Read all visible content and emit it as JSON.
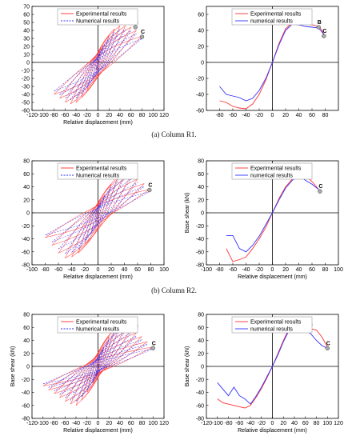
{
  "captions": [
    "(a) Column R1.",
    "(b) Column R2.",
    "(c) Column R3."
  ],
  "chart_data": [
    {
      "type": "line",
      "mode": "hysteresis",
      "panel": "a-left",
      "xlabel": "Relative displacement (mm)",
      "ylabel": "",
      "xlim": [
        -120,
        120
      ],
      "ylim": [
        -60,
        70
      ],
      "xticks": [
        -120,
        -100,
        -80,
        -60,
        -40,
        -20,
        0,
        20,
        40,
        60,
        80,
        100,
        120
      ],
      "yticks": [
        -60,
        -50,
        -40,
        -30,
        -20,
        -10,
        0,
        10,
        20,
        30,
        40,
        50,
        60,
        70
      ],
      "legend": [
        "Experimental results",
        "Numerical results"
      ],
      "colors": {
        "experimental": "#ff3030",
        "numerical": "#3030ff"
      },
      "envelope": {
        "pos_x": [
          4,
          10,
          20,
          30,
          40,
          50,
          60,
          70,
          80
        ],
        "pos_y": [
          12,
          22,
          34,
          42,
          46,
          46,
          44,
          40,
          33
        ],
        "neg_x": [
          -4,
          -10,
          -20,
          -30,
          -40,
          -50,
          -60,
          -70,
          -80
        ],
        "neg_y": [
          -10,
          -20,
          -34,
          -44,
          -50,
          -52,
          -50,
          -45,
          -40
        ]
      },
      "points": [
        {
          "label": "A",
          "x": 32,
          "y": 50
        },
        {
          "label": "B",
          "x": 68,
          "y": 44
        },
        {
          "label": "C",
          "x": 80,
          "y": 32
        }
      ]
    },
    {
      "type": "line",
      "mode": "envelope",
      "panel": "a-right",
      "xlabel": "",
      "ylabel": "",
      "xlim": [
        -100,
        100
      ],
      "ylim": [
        -60,
        70
      ],
      "xticks": [
        -80,
        -60,
        -40,
        -20,
        0,
        20,
        40,
        60,
        80
      ],
      "yticks": [
        -60,
        -40,
        -20,
        0,
        20,
        40,
        60
      ],
      "legend": [
        "Experimental results",
        "numerical results"
      ],
      "colors": {
        "experimental": "#ff3030",
        "numerical": "#3030ff"
      },
      "series": [
        {
          "name": "Experimental results",
          "x": [
            -80,
            -70,
            -60,
            -50,
            -40,
            -30,
            -20,
            -10,
            0,
            10,
            20,
            30,
            40,
            50,
            60,
            70,
            75,
            80
          ],
          "y": [
            -48,
            -50,
            -55,
            -57,
            -58,
            -52,
            -40,
            -22,
            0,
            24,
            42,
            50,
            49,
            48,
            47,
            45,
            40,
            32
          ]
        },
        {
          "name": "numerical results",
          "x": [
            -80,
            -70,
            -60,
            -50,
            -40,
            -30,
            -20,
            -10,
            0,
            10,
            20,
            30,
            40,
            50,
            60,
            70,
            75,
            80
          ],
          "y": [
            -30,
            -40,
            -42,
            -44,
            -48,
            -45,
            -35,
            -20,
            0,
            22,
            40,
            48,
            47,
            45,
            44,
            43,
            38,
            33
          ]
        }
      ],
      "points": [
        {
          "label": "A",
          "x": 32,
          "y": 50
        },
        {
          "label": "B",
          "x": 70,
          "y": 44
        },
        {
          "label": "C",
          "x": 78,
          "y": 33
        }
      ]
    },
    {
      "type": "line",
      "mode": "hysteresis",
      "panel": "b-left",
      "xlabel": "Relative displacement (mm)",
      "ylabel": "",
      "xlim": [
        -100,
        100
      ],
      "ylim": [
        -80,
        80
      ],
      "xticks": [
        -100,
        -80,
        -60,
        -40,
        -20,
        0,
        20,
        40,
        60,
        80,
        100
      ],
      "yticks": [
        -80,
        -60,
        -40,
        -20,
        0,
        20,
        40,
        60,
        80
      ],
      "legend": [
        "Experimental results",
        "Numerical results"
      ],
      "colors": {
        "experimental": "#ff3030",
        "numerical": "#3030ff"
      },
      "envelope": {
        "pos_x": [
          4,
          10,
          20,
          30,
          40,
          50,
          60,
          70,
          78
        ],
        "pos_y": [
          14,
          28,
          44,
          55,
          60,
          58,
          52,
          45,
          36
        ],
        "neg_x": [
          -4,
          -10,
          -20,
          -30,
          -40,
          -50,
          -60,
          -70,
          -80
        ],
        "neg_y": [
          -14,
          -30,
          -48,
          -62,
          -68,
          -70,
          -62,
          -50,
          -38
        ]
      },
      "points": [
        {
          "label": "A",
          "x": 38,
          "y": 60
        },
        {
          "label": "B",
          "x": 53,
          "y": 58
        },
        {
          "label": "C",
          "x": 78,
          "y": 35
        }
      ]
    },
    {
      "type": "line",
      "mode": "envelope",
      "panel": "b-right",
      "xlabel": "Relative displacement (mm)",
      "ylabel": "Base shear (kN)",
      "xlim": [
        -100,
        100
      ],
      "ylim": [
        -80,
        80
      ],
      "xticks": [
        -100,
        -80,
        -60,
        -40,
        -20,
        0,
        20,
        40,
        60,
        80,
        100
      ],
      "yticks": [
        -80,
        -60,
        -40,
        -20,
        0,
        20,
        40,
        60,
        80
      ],
      "legend": [
        "Experimental results",
        "numerical results"
      ],
      "colors": {
        "experimental": "#ff3030",
        "numerical": "#3030ff"
      },
      "series": [
        {
          "name": "Experimental results",
          "x": [
            -70,
            -60,
            -50,
            -40,
            -30,
            -20,
            -10,
            0,
            10,
            20,
            30,
            40,
            50,
            60,
            70
          ],
          "y": [
            -55,
            -75,
            -72,
            -68,
            -55,
            -40,
            -22,
            0,
            22,
            40,
            52,
            62,
            58,
            48,
            36
          ]
        },
        {
          "name": "numerical results",
          "x": [
            -70,
            -60,
            -50,
            -40,
            -30,
            -20,
            -10,
            0,
            10,
            20,
            30,
            40,
            50,
            60,
            70
          ],
          "y": [
            -35,
            -35,
            -55,
            -60,
            -50,
            -36,
            -18,
            0,
            20,
            38,
            50,
            58,
            50,
            44,
            36
          ]
        }
      ],
      "points": [
        {
          "label": "A",
          "x": 40,
          "y": 62
        },
        {
          "label": "B",
          "x": 55,
          "y": 55
        },
        {
          "label": "C",
          "x": 72,
          "y": 33
        }
      ]
    },
    {
      "type": "line",
      "mode": "hysteresis",
      "panel": "c-left",
      "xlabel": "Relative displacement (mm)",
      "ylabel": "Base shear (kN)",
      "xlim": [
        -120,
        120
      ],
      "ylim": [
        -80,
        80
      ],
      "xticks": [
        -120,
        -100,
        -80,
        -60,
        -40,
        -20,
        0,
        20,
        40,
        60,
        80,
        100,
        120
      ],
      "yticks": [
        -80,
        -60,
        -40,
        -20,
        0,
        20,
        40,
        60,
        80
      ],
      "legend": [
        "Experimental results",
        "Numerical results"
      ],
      "colors": {
        "experimental": "#ff3030",
        "numerical": "#3030ff"
      },
      "envelope": {
        "pos_x": [
          4,
          10,
          20,
          30,
          40,
          50,
          60,
          70,
          80,
          90,
          100
        ],
        "pos_y": [
          16,
          30,
          46,
          58,
          64,
          62,
          58,
          52,
          46,
          38,
          30
        ],
        "neg_x": [
          -4,
          -10,
          -20,
          -30,
          -40,
          -50,
          -60,
          -70,
          -80,
          -90,
          -100
        ],
        "neg_y": [
          -14,
          -26,
          -40,
          -52,
          -60,
          -58,
          -54,
          -48,
          -42,
          -36,
          -30
        ]
      },
      "points": [
        {
          "label": "A",
          "x": 40,
          "y": 64
        },
        {
          "label": "B",
          "x": 68,
          "y": 55
        },
        {
          "label": "C",
          "x": 100,
          "y": 28
        }
      ]
    },
    {
      "type": "line",
      "mode": "envelope",
      "panel": "c-right",
      "xlabel": "Relative displacement (mm)",
      "ylabel": "Base shear (kN)",
      "xlim": [
        -120,
        120
      ],
      "ylim": [
        -80,
        80
      ],
      "xticks": [
        -120,
        -100,
        -80,
        -60,
        -40,
        -20,
        0,
        20,
        40,
        60,
        80,
        100,
        120
      ],
      "yticks": [
        -80,
        -60,
        -40,
        -20,
        0,
        20,
        40,
        60,
        80
      ],
      "legend": [
        "Experimental results",
        "numerical results"
      ],
      "colors": {
        "experimental": "#ff3030",
        "numerical": "#3030ff"
      },
      "series": [
        {
          "name": "Experimental results",
          "x": [
            -100,
            -90,
            -80,
            -70,
            -60,
            -50,
            -40,
            -30,
            -20,
            -10,
            0,
            10,
            20,
            30,
            40,
            50,
            60,
            70,
            80,
            90,
            100
          ],
          "y": [
            -50,
            -56,
            -58,
            -60,
            -62,
            -64,
            -60,
            -48,
            -34,
            -18,
            0,
            20,
            40,
            58,
            66,
            62,
            60,
            58,
            56,
            45,
            30
          ]
        },
        {
          "name": "numerical results",
          "x": [
            -100,
            -90,
            -80,
            -70,
            -60,
            -50,
            -40,
            -30,
            -20,
            -10,
            0,
            10,
            20,
            30,
            40,
            50,
            60,
            70,
            80,
            90,
            100
          ],
          "y": [
            -25,
            -35,
            -45,
            -32,
            -45,
            -50,
            -58,
            -46,
            -32,
            -16,
            0,
            18,
            38,
            55,
            64,
            60,
            56,
            50,
            40,
            32,
            28
          ]
        }
      ],
      "points": [
        {
          "label": "A",
          "x": 40,
          "y": 65
        },
        {
          "label": "B",
          "x": 68,
          "y": 57
        },
        {
          "label": "C",
          "x": 100,
          "y": 28
        }
      ]
    }
  ]
}
